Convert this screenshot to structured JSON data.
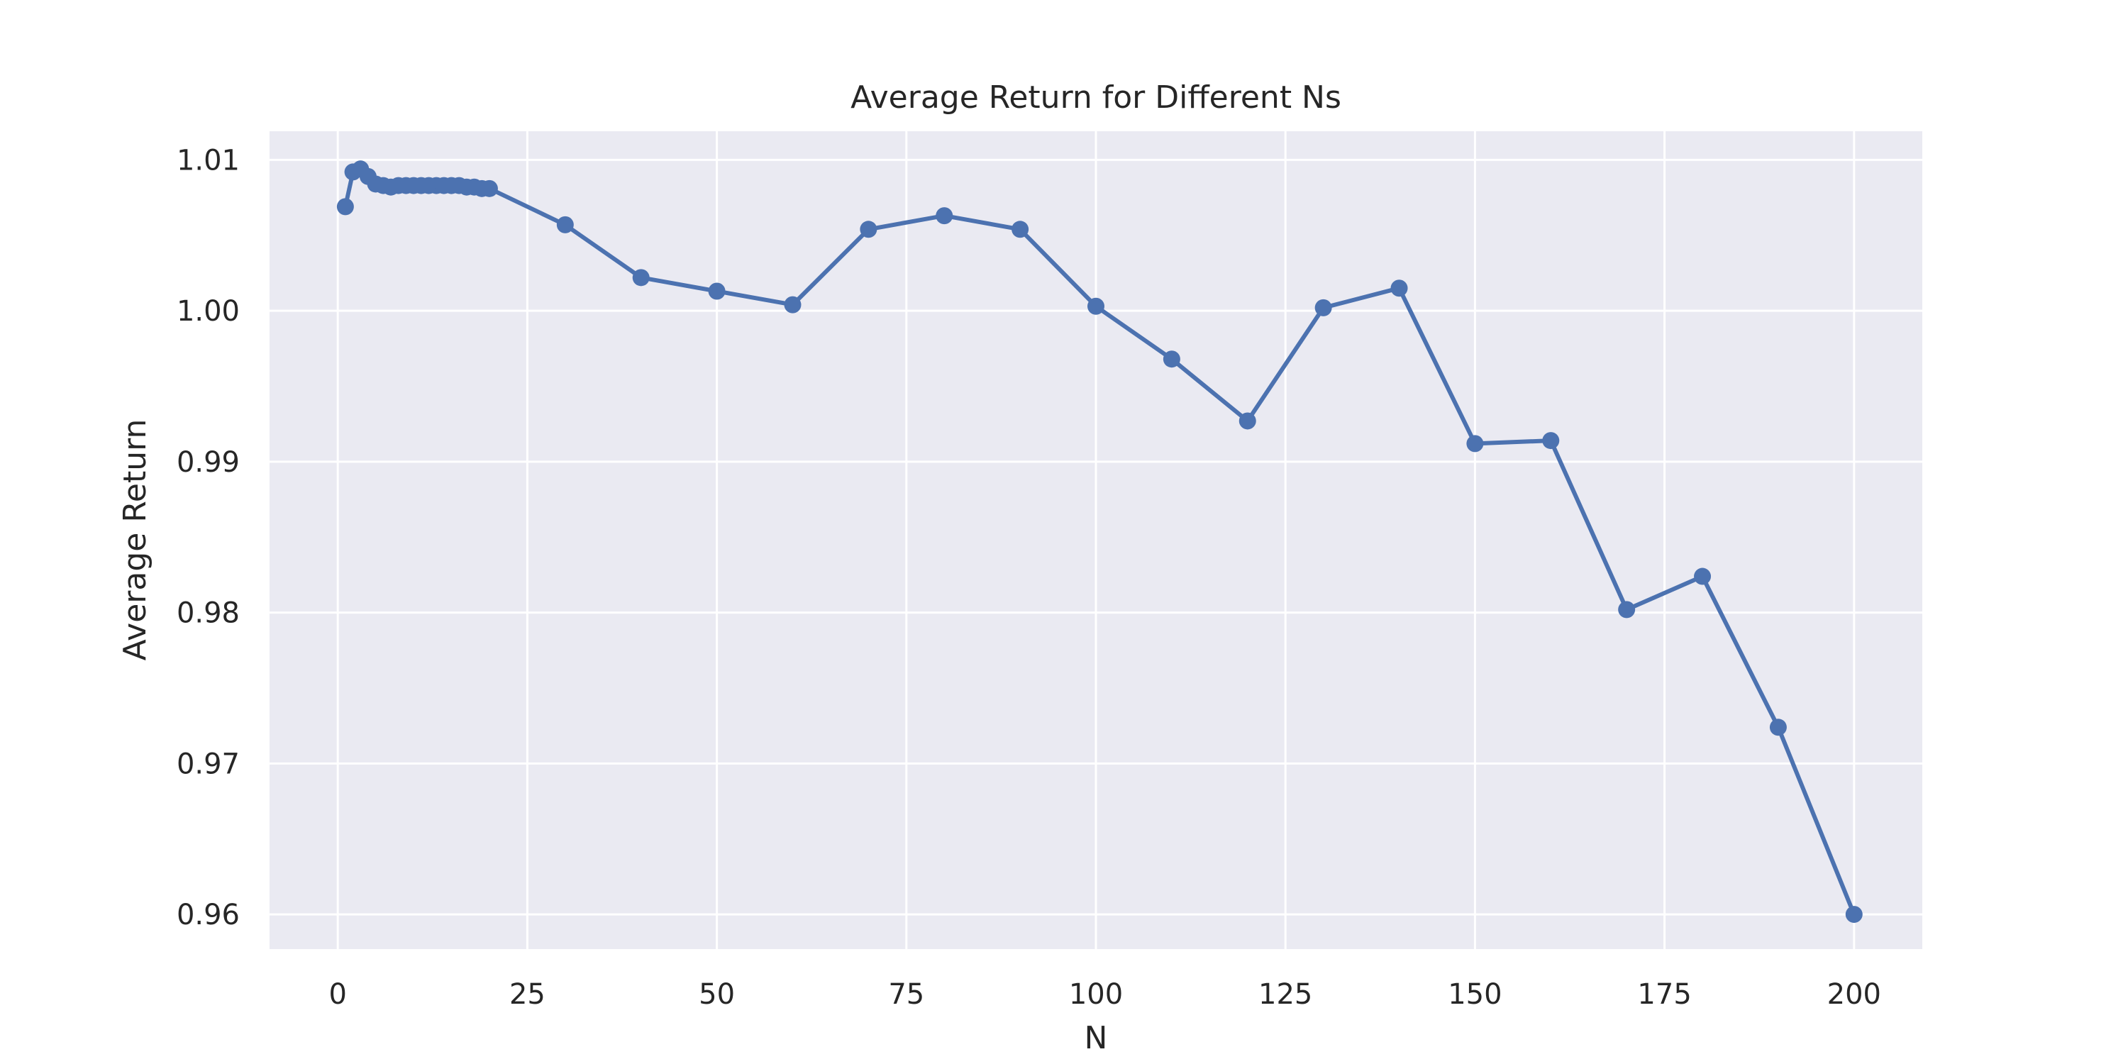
{
  "chart_data": {
    "type": "line",
    "title": "Average Return for Different Ns",
    "xlabel": "N",
    "ylabel": "Average Return",
    "xlim": [
      -9,
      209
    ],
    "ylim": [
      0.9577,
      1.0119
    ],
    "xticks": [
      0,
      25,
      50,
      75,
      100,
      125,
      150,
      175,
      200
    ],
    "yticks": [
      0.96,
      0.97,
      0.98,
      0.99,
      1.0,
      1.01
    ],
    "xtick_labels": [
      "0",
      "25",
      "50",
      "75",
      "100",
      "125",
      "150",
      "175",
      "200"
    ],
    "ytick_labels": [
      "0.96",
      "0.97",
      "0.98",
      "0.99",
      "1.00",
      "1.01"
    ],
    "grid": true,
    "colors": {
      "series": "#4c72b0",
      "plot_background": "#eaeaf2",
      "grid": "#ffffff",
      "text": "#262626"
    },
    "series": [
      {
        "x": [
          1,
          2,
          3,
          4,
          5,
          6,
          7,
          8,
          9,
          10,
          11,
          12,
          13,
          14,
          15,
          16,
          17,
          18,
          19,
          20,
          30,
          40,
          50,
          60,
          70,
          80,
          90,
          100,
          110,
          120,
          130,
          140,
          150,
          160,
          170,
          180,
          190,
          200
        ],
        "y": [
          1.0069,
          1.0092,
          1.0094,
          1.0089,
          1.0084,
          1.0083,
          1.0082,
          1.0083,
          1.0083,
          1.0083,
          1.0083,
          1.0083,
          1.0083,
          1.0083,
          1.0083,
          1.0083,
          1.0082,
          1.0082,
          1.0081,
          1.0081,
          1.0057,
          1.0022,
          1.0013,
          1.0004,
          1.0054,
          1.0063,
          1.0054,
          1.0003,
          0.9968,
          0.9927,
          1.0002,
          1.0015,
          0.9912,
          0.9914,
          0.9802,
          0.9824,
          0.9724,
          0.96
        ]
      }
    ]
  }
}
